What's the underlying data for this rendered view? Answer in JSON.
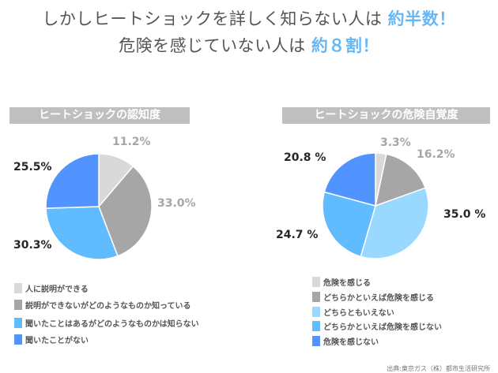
{
  "headline": {
    "line1_text": "しかしヒートショックを詳しく知らない人は ",
    "line1_highlight": "約半数！",
    "line2_text": "危険を感じていない人は ",
    "line2_highlight": "約８割！",
    "highlight_color": "#66b8f5"
  },
  "chart_data": [
    {
      "type": "pie",
      "title": "ヒートショックの認知度",
      "categories": [
        "人に説明ができる",
        "説明ができないがどのようなものか知っている",
        "聞いたことはあるがどのようなものかは知らない",
        "聞いたことがない"
      ],
      "values": [
        11.2,
        33.0,
        30.3,
        25.5
      ],
      "data_labels": [
        "11.2%",
        "33.0%",
        "30.3%",
        "25.5%"
      ],
      "colors": [
        "#d9d9d9",
        "#a6a6a6",
        "#61bbff",
        "#5294ff"
      ],
      "start": "12 o'clock, clockwise",
      "legend": "bottom"
    },
    {
      "type": "pie",
      "title": "ヒートショックの危険自覚度",
      "categories": [
        "危険を感じる",
        "どちらかといえば危険を感じる",
        "どちらともいえない",
        "どちらかといえば危険を感じない",
        "危険を感じない"
      ],
      "values": [
        3.3,
        16.2,
        35.0,
        24.7,
        20.8
      ],
      "data_labels": [
        "3.3%",
        "16.2%",
        "35.0 %",
        "24.7 %",
        "20.8 %"
      ],
      "colors": [
        "#d9d9d9",
        "#a6a6a6",
        "#99d9ff",
        "#61bbff",
        "#5294ff"
      ],
      "start": "12 o'clock, clockwise",
      "legend": "bottom"
    }
  ],
  "source": "出典:東京ガス（株）都市生活研究所"
}
